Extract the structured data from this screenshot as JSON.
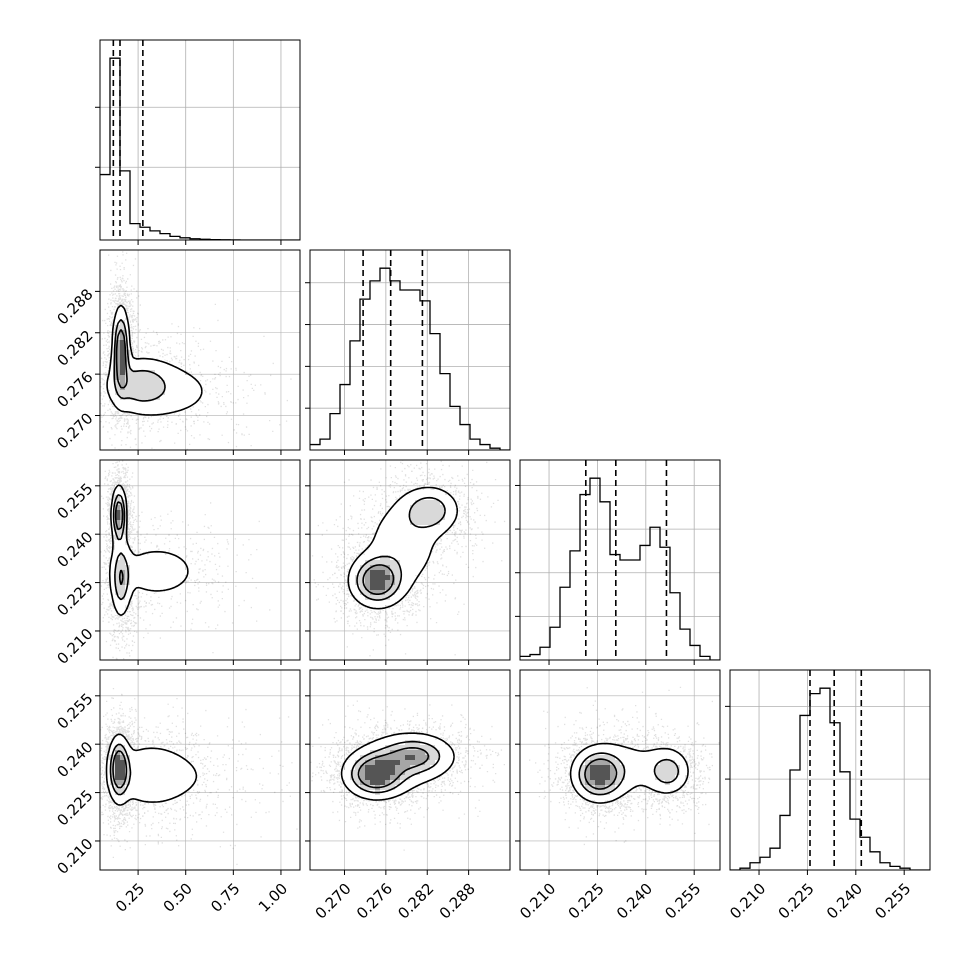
{
  "chart_data": {
    "type": "corner",
    "grid": true,
    "parameters": [
      {
        "range": [
          0.05,
          1.1
        ],
        "ticks": [
          0.25,
          0.5,
          0.75,
          1.0
        ],
        "tick_labels": [
          "0.25",
          "0.50",
          "0.75",
          "1.00"
        ]
      },
      {
        "range": [
          0.265,
          0.294
        ],
        "ticks": [
          0.27,
          0.276,
          0.282,
          0.288
        ],
        "tick_labels": [
          "0.270",
          "0.276",
          "0.282",
          "0.288"
        ]
      },
      {
        "range": [
          0.201,
          0.263
        ],
        "ticks": [
          0.21,
          0.225,
          0.24,
          0.255
        ],
        "tick_labels": [
          "0.210",
          "0.225",
          "0.240",
          "0.255"
        ]
      },
      {
        "range": [
          0.201,
          0.263
        ],
        "ticks": [
          0.21,
          0.225,
          0.24,
          0.255
        ],
        "tick_labels": [
          "0.210",
          "0.225",
          "0.240",
          "0.255"
        ]
      }
    ],
    "histograms": [
      {
        "param": 0,
        "bins": [
          0.05,
          0.1025,
          0.155,
          0.2075,
          0.26,
          0.3125,
          0.365,
          0.4175,
          0.47,
          0.5225,
          0.575,
          0.6275,
          0.68,
          0.7325,
          0.785,
          0.8375,
          0.89,
          0.9425,
          0.995,
          1.0475,
          1.1
        ],
        "counts": [
          0.36,
          1.0,
          0.38,
          0.09,
          0.07,
          0.05,
          0.035,
          0.02,
          0.012,
          0.007,
          0.004,
          0.002,
          0.001,
          0.0005,
          0,
          0,
          0,
          0,
          0,
          0
        ],
        "quantiles": [
          0.12,
          0.155,
          0.275
        ],
        "yticks": [
          0.4,
          0.73
        ]
      },
      {
        "param": 1,
        "bins": [
          0.265,
          0.26645,
          0.2679,
          0.26935,
          0.2708,
          0.27225,
          0.2737,
          0.27515,
          0.2766,
          0.27805,
          0.2795,
          0.28095,
          0.2824,
          0.28385,
          0.2853,
          0.28675,
          0.2882,
          0.28965,
          0.2911,
          0.29255,
          0.294
        ],
        "counts": [
          0.03,
          0.06,
          0.2,
          0.36,
          0.6,
          0.83,
          0.93,
          1.0,
          0.93,
          0.88,
          0.88,
          0.82,
          0.64,
          0.42,
          0.24,
          0.14,
          0.06,
          0.03,
          0.01,
          0
        ],
        "quantiles": [
          0.2727,
          0.2767,
          0.2813
        ],
        "yticks": [
          0.23,
          0.46,
          0.69,
          0.92
        ]
      },
      {
        "param": 2,
        "bins": [
          0.201,
          0.2041,
          0.2072,
          0.2103,
          0.2134,
          0.2165,
          0.2196,
          0.2227,
          0.2258,
          0.2289,
          0.232,
          0.2351,
          0.2382,
          0.2413,
          0.2444,
          0.2475,
          0.2506,
          0.2537,
          0.2568,
          0.2599,
          0.263
        ],
        "counts": [
          0.02,
          0.03,
          0.07,
          0.18,
          0.4,
          0.6,
          0.91,
          1.0,
          0.87,
          0.58,
          0.55,
          0.55,
          0.63,
          0.73,
          0.62,
          0.37,
          0.17,
          0.08,
          0.02,
          0
        ],
        "quantiles": [
          0.2214,
          0.2307,
          0.2464
        ],
        "yticks": [
          0.3,
          0.6,
          0.9,
          1.2
        ]
      },
      {
        "param": 3,
        "bins": [
          0.201,
          0.2041,
          0.2072,
          0.2103,
          0.2134,
          0.2165,
          0.2196,
          0.2227,
          0.2258,
          0.2289,
          0.232,
          0.2351,
          0.2382,
          0.2413,
          0.2444,
          0.2475,
          0.2506,
          0.2537,
          0.2568,
          0.2599,
          0.263
        ],
        "counts": [
          0,
          0.01,
          0.04,
          0.07,
          0.12,
          0.3,
          0.55,
          0.85,
          0.97,
          1.0,
          0.81,
          0.54,
          0.28,
          0.18,
          0.1,
          0.04,
          0.02,
          0.01,
          0,
          0
        ],
        "quantiles": [
          0.2258,
          0.2333,
          0.2417
        ],
        "yticks": [
          0.5,
          0.9
        ]
      }
    ],
    "density_panels": [
      {
        "x_param": 0,
        "y_param": 1,
        "blobs": [
          {
            "x": 0.16,
            "y": 0.2795,
            "sx": 0.025,
            "sy": 0.0035,
            "w": 1.0
          },
          {
            "x": 0.26,
            "y": 0.2745,
            "sx": 0.1,
            "sy": 0.0022,
            "w": 0.5
          },
          {
            "x": 0.42,
            "y": 0.2735,
            "sx": 0.2,
            "sy": 0.0032,
            "w": 0.25
          }
        ]
      },
      {
        "x_param": 0,
        "y_param": 2,
        "blobs": [
          {
            "x": 0.15,
            "y": 0.246,
            "sx": 0.022,
            "sy": 0.005,
            "w": 1.0
          },
          {
            "x": 0.16,
            "y": 0.226,
            "sx": 0.03,
            "sy": 0.007,
            "w": 0.6
          },
          {
            "x": 0.35,
            "y": 0.2285,
            "sx": 0.16,
            "sy": 0.006,
            "w": 0.3
          }
        ]
      },
      {
        "x_param": 0,
        "y_param": 3,
        "blobs": [
          {
            "x": 0.15,
            "y": 0.2325,
            "sx": 0.03,
            "sy": 0.0055,
            "w": 1.0
          },
          {
            "x": 0.3,
            "y": 0.2305,
            "sx": 0.12,
            "sy": 0.006,
            "w": 0.35
          },
          {
            "x": 0.5,
            "y": 0.23,
            "sx": 0.2,
            "sy": 0.007,
            "w": 0.15
          }
        ]
      },
      {
        "x_param": 1,
        "y_param": 2,
        "blobs": [
          {
            "x": 0.2747,
            "y": 0.2255,
            "sx": 0.0022,
            "sy": 0.0045,
            "w": 1.0
          },
          {
            "x": 0.2825,
            "y": 0.2475,
            "sx": 0.0024,
            "sy": 0.0042,
            "w": 0.6
          },
          {
            "x": 0.2785,
            "y": 0.237,
            "sx": 0.0035,
            "sy": 0.009,
            "w": 0.35
          }
        ]
      },
      {
        "x_param": 1,
        "y_param": 3,
        "blobs": [
          {
            "x": 0.2745,
            "y": 0.2305,
            "sx": 0.0025,
            "sy": 0.004,
            "w": 1.0
          },
          {
            "x": 0.2803,
            "y": 0.2365,
            "sx": 0.003,
            "sy": 0.0035,
            "w": 0.6
          },
          {
            "x": 0.2785,
            "y": 0.2345,
            "sx": 0.0045,
            "sy": 0.006,
            "w": 0.3
          }
        ]
      },
      {
        "x_param": 2,
        "y_param": 3,
        "blobs": [
          {
            "x": 0.2255,
            "y": 0.2305,
            "sx": 0.0045,
            "sy": 0.0045,
            "w": 1.0
          },
          {
            "x": 0.247,
            "y": 0.2315,
            "sx": 0.0038,
            "sy": 0.004,
            "w": 0.55
          },
          {
            "x": 0.2345,
            "y": 0.233,
            "sx": 0.009,
            "sy": 0.006,
            "w": 0.25
          }
        ]
      }
    ],
    "colors": {
      "line": "#000000",
      "grid": "#b0b0b0",
      "points": "#000000",
      "background": "#ffffff"
    }
  }
}
